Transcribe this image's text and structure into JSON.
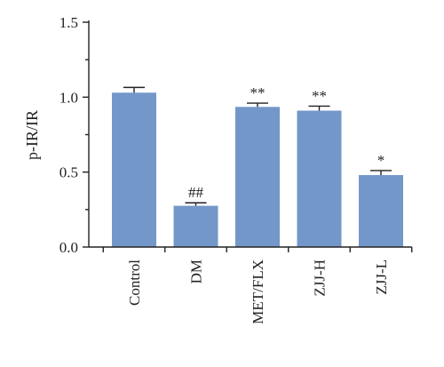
{
  "chart_data": {
    "type": "bar",
    "categories": [
      "Control",
      "DM",
      "MET/FLX",
      "ZJJ-H",
      "ZJJ-L"
    ],
    "values": [
      1.03,
      0.275,
      0.935,
      0.91,
      0.48
    ],
    "errors": [
      0.035,
      0.02,
      0.025,
      0.03,
      0.03
    ],
    "annotations": [
      "",
      "##",
      "**",
      "**",
      "*"
    ],
    "title": "",
    "xlabel": "",
    "ylabel": "p-IR/IR",
    "ylim": [
      0,
      1.5
    ],
    "yticks": [
      0.0,
      0.5,
      1.0,
      1.5
    ],
    "ytick_labels": [
      "0.0",
      "0.5",
      "1.0",
      "1.5"
    ],
    "grid": false,
    "legend": "none",
    "bar_color": "#7397c9"
  }
}
